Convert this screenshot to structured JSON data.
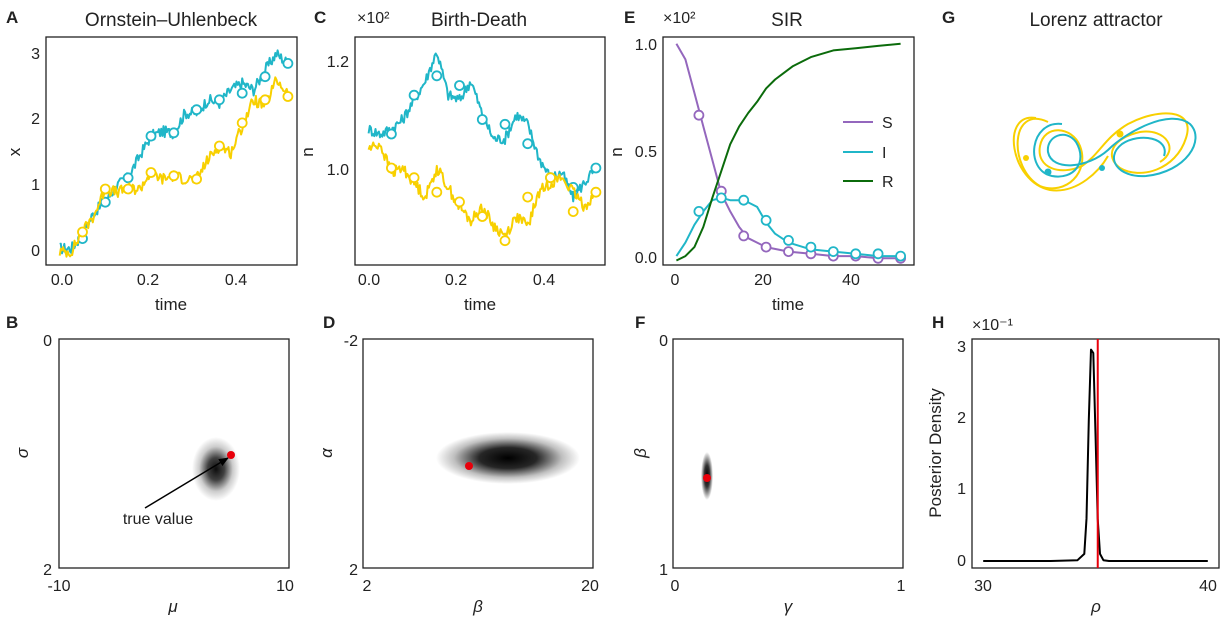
{
  "colors": {
    "cyan": "#20b6c8",
    "yellow": "#f8d000",
    "purple": "#9467bd",
    "green": "#0b6b0b",
    "red": "#e8000b",
    "black": "#000000"
  },
  "panels": {
    "A": {
      "letter": "A",
      "title": "Ornstein–Uhlenbeck",
      "xlabel": "time",
      "ylabel": "x",
      "xticks": [
        "0.0",
        "0.2",
        "0.4"
      ],
      "yticks": [
        "0",
        "1",
        "2",
        "3"
      ]
    },
    "B": {
      "letter": "B",
      "xlabel": "μ",
      "ylabel": "σ",
      "xticks": [
        "-10",
        "10"
      ],
      "yticks": [
        "0",
        "2"
      ],
      "annotation": "true value"
    },
    "C": {
      "letter": "C",
      "title": "Birth-Death",
      "multiplier": "×10²",
      "xlabel": "time",
      "ylabel": "n",
      "xticks": [
        "0.0",
        "0.2",
        "0.4"
      ],
      "yticks": [
        "1.0",
        "1.2"
      ]
    },
    "D": {
      "letter": "D",
      "xlabel": "β",
      "ylabel": "α",
      "xticks": [
        "2",
        "20"
      ],
      "yticks": [
        "-2",
        "2"
      ]
    },
    "E": {
      "letter": "E",
      "title": "SIR",
      "multiplier": "×10²",
      "xlabel": "time",
      "ylabel": "n",
      "xticks": [
        "0",
        "20",
        "40"
      ],
      "yticks": [
        "0.0",
        "0.5",
        "1.0"
      ],
      "legend": [
        "S",
        "I",
        "R"
      ]
    },
    "F": {
      "letter": "F",
      "xlabel": "γ",
      "ylabel": "β",
      "xticks": [
        "0",
        "1"
      ],
      "yticks": [
        "0",
        "1"
      ]
    },
    "G": {
      "letter": "G",
      "title": "Lorenz attractor"
    },
    "H": {
      "letter": "H",
      "multiplier": "×10⁻¹",
      "xlabel": "ρ",
      "ylabel": "Posterior Density",
      "xticks": [
        "30",
        "40"
      ],
      "yticks": [
        "0",
        "1",
        "2",
        "3"
      ]
    }
  },
  "chart_data": [
    {
      "panel": "A",
      "type": "line",
      "title": "Ornstein–Uhlenbeck",
      "xlabel": "time",
      "ylabel": "x",
      "xlim": [
        -0.03,
        0.52
      ],
      "ylim": [
        -0.2,
        3.25
      ],
      "series": [
        {
          "color": "cyan",
          "x": [
            0.0,
            0.025,
            0.05,
            0.075,
            0.1,
            0.125,
            0.15,
            0.175,
            0.2,
            0.225,
            0.25,
            0.275,
            0.3,
            0.325,
            0.35,
            0.375,
            0.4,
            0.425,
            0.45,
            0.475,
            0.5
          ],
          "y": [
            0.05,
            0.05,
            0.25,
            0.6,
            0.75,
            1.0,
            1.12,
            1.45,
            1.75,
            1.82,
            1.8,
            2.1,
            2.1,
            2.3,
            2.25,
            2.45,
            2.55,
            2.45,
            2.75,
            3.0,
            2.85
          ],
          "marker_x": [
            0.05,
            0.1,
            0.15,
            0.2,
            0.25,
            0.3,
            0.35,
            0.4,
            0.45,
            0.5
          ],
          "marker_y": [
            0.2,
            0.75,
            1.12,
            1.75,
            1.8,
            2.15,
            2.3,
            2.4,
            2.65,
            2.85
          ]
        },
        {
          "color": "yellow",
          "x": [
            0.0,
            0.025,
            0.05,
            0.075,
            0.1,
            0.125,
            0.15,
            0.175,
            0.2,
            0.225,
            0.25,
            0.275,
            0.3,
            0.325,
            0.35,
            0.375,
            0.4,
            0.425,
            0.45,
            0.475,
            0.5
          ],
          "y": [
            0.0,
            0.0,
            0.3,
            0.55,
            0.95,
            0.9,
            0.95,
            0.95,
            1.2,
            1.1,
            1.15,
            1.1,
            1.1,
            1.4,
            1.6,
            1.5,
            1.9,
            2.3,
            2.2,
            2.6,
            2.4
          ],
          "marker_x": [
            0.05,
            0.1,
            0.15,
            0.2,
            0.25,
            0.3,
            0.35,
            0.4,
            0.45,
            0.5
          ],
          "marker_y": [
            0.3,
            0.95,
            0.95,
            1.2,
            1.15,
            1.1,
            1.6,
            1.95,
            2.3,
            2.35
          ]
        }
      ]
    },
    {
      "panel": "C",
      "type": "line",
      "title": "Birth-Death",
      "multiplier": "×10²",
      "xlabel": "time",
      "ylabel": "n",
      "xlim": [
        -0.03,
        0.52
      ],
      "ylim": [
        0.78,
        1.25
      ],
      "series": [
        {
          "color": "cyan",
          "x": [
            0.0,
            0.025,
            0.05,
            0.075,
            0.1,
            0.125,
            0.15,
            0.175,
            0.2,
            0.225,
            0.25,
            0.275,
            0.3,
            0.325,
            0.35,
            0.375,
            0.4,
            0.425,
            0.45,
            0.475,
            0.5
          ],
          "y": [
            1.06,
            1.05,
            1.06,
            1.08,
            1.12,
            1.16,
            1.22,
            1.13,
            1.12,
            1.16,
            1.09,
            1.04,
            1.04,
            1.09,
            1.07,
            1.0,
            0.96,
            0.97,
            0.92,
            0.95,
            0.98
          ],
          "marker_x": [
            0.05,
            0.1,
            0.15,
            0.2,
            0.25,
            0.3,
            0.35,
            0.4,
            0.45,
            0.5
          ],
          "marker_y": [
            1.05,
            1.13,
            1.17,
            1.15,
            1.08,
            1.07,
            1.03,
            0.96,
            0.94,
            0.98
          ]
        },
        {
          "color": "yellow",
          "x": [
            0.0,
            0.025,
            0.05,
            0.075,
            0.1,
            0.125,
            0.15,
            0.175,
            0.2,
            0.225,
            0.25,
            0.275,
            0.3,
            0.325,
            0.35,
            0.375,
            0.4,
            0.425,
            0.45,
            0.475,
            0.5
          ],
          "y": [
            1.02,
            1.03,
            0.97,
            0.98,
            0.95,
            0.92,
            0.98,
            0.94,
            0.9,
            0.87,
            0.9,
            0.86,
            0.84,
            0.88,
            0.86,
            0.93,
            0.95,
            0.96,
            0.93,
            0.9,
            0.93
          ],
          "marker_x": [
            0.05,
            0.1,
            0.15,
            0.2,
            0.25,
            0.3,
            0.35,
            0.4,
            0.45,
            0.5
          ],
          "marker_y": [
            0.98,
            0.96,
            0.93,
            0.91,
            0.88,
            0.83,
            0.92,
            0.96,
            0.89,
            0.93
          ]
        }
      ]
    },
    {
      "panel": "E",
      "type": "line",
      "title": "SIR",
      "multiplier": "×10²",
      "xlabel": "time",
      "ylabel": "n",
      "xlim": [
        -3,
        53
      ],
      "ylim": [
        -0.02,
        1.0
      ],
      "legend_position": "right",
      "series": [
        {
          "name": "S",
          "color": "purple",
          "x": [
            0,
            2,
            4,
            6,
            8,
            10,
            12,
            14,
            16,
            20,
            25,
            30,
            35,
            40,
            45,
            50
          ],
          "y": [
            0.97,
            0.9,
            0.75,
            0.6,
            0.45,
            0.3,
            0.22,
            0.15,
            0.1,
            0.06,
            0.04,
            0.03,
            0.02,
            0.02,
            0.01,
            0.01
          ],
          "marker_x": [
            5,
            10,
            15,
            20,
            25,
            30,
            35,
            40,
            45,
            50
          ],
          "marker_y": [
            0.65,
            0.31,
            0.11,
            0.06,
            0.04,
            0.03,
            0.02,
            0.02,
            0.01,
            0.01
          ]
        },
        {
          "name": "I",
          "color": "cyan",
          "x": [
            0,
            2,
            4,
            6,
            8,
            10,
            12,
            14,
            16,
            18,
            20,
            22,
            25,
            30,
            35,
            40,
            45,
            50
          ],
          "y": [
            0.02,
            0.08,
            0.16,
            0.22,
            0.27,
            0.28,
            0.27,
            0.27,
            0.26,
            0.24,
            0.17,
            0.12,
            0.08,
            0.05,
            0.04,
            0.03,
            0.02,
            0.02
          ],
          "marker_x": [
            5,
            10,
            15,
            20,
            25,
            30,
            35,
            40,
            45,
            50
          ],
          "marker_y": [
            0.22,
            0.28,
            0.27,
            0.18,
            0.09,
            0.06,
            0.04,
            0.03,
            0.03,
            0.02
          ]
        },
        {
          "name": "R",
          "color": "green",
          "x": [
            0,
            2,
            4,
            6,
            8,
            10,
            12,
            14,
            16,
            18,
            20,
            22,
            24,
            26,
            28,
            30,
            35,
            40,
            45,
            50
          ],
          "y": [
            0.0,
            0.02,
            0.06,
            0.15,
            0.28,
            0.4,
            0.52,
            0.6,
            0.66,
            0.71,
            0.77,
            0.81,
            0.84,
            0.87,
            0.89,
            0.91,
            0.94,
            0.95,
            0.96,
            0.97
          ]
        }
      ]
    },
    {
      "panel": "H",
      "type": "line",
      "multiplier": "×10⁻¹",
      "xlabel": "ρ",
      "ylabel": "Posterior Density",
      "xlim": [
        29.5,
        40.5
      ],
      "ylim": [
        -0.1,
        3.15
      ],
      "series": [
        {
          "color": "black",
          "x": [
            30,
            33,
            34.2,
            34.5,
            34.6,
            34.7,
            34.8,
            34.9,
            35.0,
            35.1,
            35.2,
            35.35,
            35.6,
            37,
            40
          ],
          "y": [
            0,
            0,
            0.01,
            0.1,
            0.6,
            2.0,
            3.0,
            2.95,
            1.8,
            0.6,
            0.1,
            0.01,
            0,
            0,
            0
          ]
        }
      ],
      "vline": {
        "x": 35.1,
        "color": "red"
      }
    },
    {
      "panel": "B",
      "type": "heatmap",
      "xlabel": "μ",
      "ylabel": "σ",
      "xlim": [
        -10,
        10
      ],
      "ylim": [
        2,
        0
      ],
      "density_center": [
        6.8,
        1.2
      ],
      "true_value": [
        7.6,
        1.0
      ]
    },
    {
      "panel": "D",
      "type": "heatmap",
      "xlabel": "β",
      "ylabel": "α",
      "xlim": [
        2,
        20
      ],
      "ylim": [
        2,
        -2
      ],
      "density_center": [
        13.0,
        0.2
      ],
      "true_value": [
        10.0,
        0.3
      ]
    },
    {
      "panel": "F",
      "type": "heatmap",
      "xlabel": "γ",
      "ylabel": "β",
      "xlim": [
        0,
        1
      ],
      "ylim": [
        1,
        0
      ],
      "density_center": [
        0.15,
        0.59
      ],
      "true_value": [
        0.15,
        0.6
      ]
    }
  ]
}
